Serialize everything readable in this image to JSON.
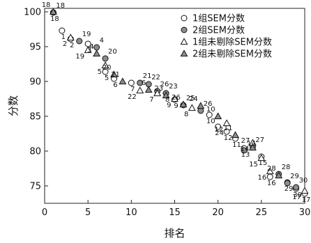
{
  "chart_data": {
    "type": "scatter",
    "xlabel": "排名",
    "ylabel": "分数",
    "xlim": [
      0,
      30
    ],
    "ylim": [
      72.5,
      100.5
    ],
    "xticks": [
      0,
      5,
      10,
      15,
      20,
      25,
      30
    ],
    "yticks": [
      75,
      80,
      85,
      90,
      95,
      100
    ],
    "grid": false,
    "legend_position": "top-right",
    "series": [
      {
        "name": "1组SEM分数",
        "marker": "open-circle",
        "points": [
          {
            "x": 1,
            "y": 99.9,
            "label": "18"
          },
          {
            "x": 2,
            "y": 97.3,
            "label": "1"
          },
          {
            "x": 3,
            "y": 96.1,
            "label": "2"
          },
          {
            "x": 5,
            "y": 95.4,
            "label": "3"
          },
          {
            "x": 7,
            "y": 91.4,
            "label": "5"
          },
          {
            "x": 8,
            "y": 90.4,
            "label": "6"
          },
          {
            "x": 10,
            "y": 89.8,
            "label": "7"
          },
          {
            "x": 14,
            "y": 88.3,
            "label": "8"
          },
          {
            "x": 15,
            "y": 87.4,
            "label": "9"
          },
          {
            "x": 19,
            "y": 85.2,
            "label": "10"
          },
          {
            "x": 20,
            "y": 83.5,
            "label": "24"
          },
          {
            "x": 21,
            "y": 82.8,
            "label": "12"
          },
          {
            "x": 22,
            "y": 81.8,
            "label": "11"
          },
          {
            "x": 23,
            "y": 80.4,
            "label": "13"
          },
          {
            "x": 25,
            "y": 79.2,
            "label": "15"
          },
          {
            "x": 26,
            "y": 76.3,
            "label": "16"
          },
          {
            "x": 28,
            "y": 75.5,
            "label": "29"
          },
          {
            "x": 29,
            "y": 74.6,
            "label": "30"
          },
          {
            "x": 30,
            "y": 73.9,
            "label": "17"
          }
        ]
      },
      {
        "name": "2组SEM分数",
        "marker": "filled-circle",
        "points": [
          {
            "x": 1,
            "y": 99.9,
            "label": "18"
          },
          {
            "x": 4,
            "y": 95.8,
            "label": "19"
          },
          {
            "x": 6,
            "y": 94.9,
            "label": "4"
          },
          {
            "x": 7,
            "y": 93.3,
            "label": "20"
          },
          {
            "x": 11,
            "y": 89.8,
            "label": "21"
          },
          {
            "x": 12,
            "y": 89.6,
            "label": "22"
          },
          {
            "x": 13,
            "y": 88.6,
            "label": "26"
          },
          {
            "x": 14,
            "y": 88.3,
            "label": "23"
          },
          {
            "x": 16,
            "y": 86.6,
            "label": "25"
          },
          {
            "x": 18,
            "y": 85.8,
            "label": "26"
          },
          {
            "x": 23,
            "y": 80.1,
            "label": "14"
          },
          {
            "x": 24,
            "y": 80.6,
            "label": "27"
          },
          {
            "x": 27,
            "y": 76.7,
            "label": "28"
          },
          {
            "x": 28,
            "y": 75.4,
            "label": "29"
          },
          {
            "x": 29,
            "y": 74.8,
            "label": "30"
          }
        ]
      },
      {
        "name": "1组未剔除SEM分数",
        "marker": "open-triangle",
        "points": [
          {
            "x": 3,
            "y": 96.3,
            "label": "2"
          },
          {
            "x": 5,
            "y": 94.5,
            "label": "19"
          },
          {
            "x": 7,
            "y": 92.3,
            "label": "5"
          },
          {
            "x": 11,
            "y": 88.7,
            "label": "22"
          },
          {
            "x": 13,
            "y": 88.3,
            "label": "7"
          },
          {
            "x": 15,
            "y": 87.5,
            "label": "9"
          },
          {
            "x": 17,
            "y": 86.2,
            "label": "8"
          },
          {
            "x": 21,
            "y": 84.0,
            "label": "12"
          },
          {
            "x": 24,
            "y": 81.2,
            "label": "14"
          },
          {
            "x": 25,
            "y": 79.0,
            "label": "15"
          },
          {
            "x": 26,
            "y": 77.1,
            "label": "16"
          },
          {
            "x": 30,
            "y": 74.3,
            "label": "17"
          }
        ]
      },
      {
        "name": "2组未剔除SEM分数",
        "marker": "filled-triangle",
        "points": [
          {
            "x": 1,
            "y": 100.0,
            "label": "18"
          },
          {
            "x": 6,
            "y": 94.0,
            "label": "4"
          },
          {
            "x": 8,
            "y": 91.0,
            "label": "20"
          },
          {
            "x": 9,
            "y": 90.0,
            "label": "21"
          },
          {
            "x": 12,
            "y": 88.8,
            "label": "6"
          },
          {
            "x": 14,
            "y": 88.0,
            "label": "23"
          },
          {
            "x": 16,
            "y": 86.7,
            "label": "26"
          },
          {
            "x": 18,
            "y": 86.5,
            "label": "24"
          },
          {
            "x": 20,
            "y": 85.0,
            "label": "10"
          },
          {
            "x": 22,
            "y": 82.3,
            "label": "11"
          },
          {
            "x": 24,
            "y": 80.5,
            "label": "27"
          },
          {
            "x": 27,
            "y": 76.5,
            "label": "28"
          }
        ]
      }
    ]
  }
}
